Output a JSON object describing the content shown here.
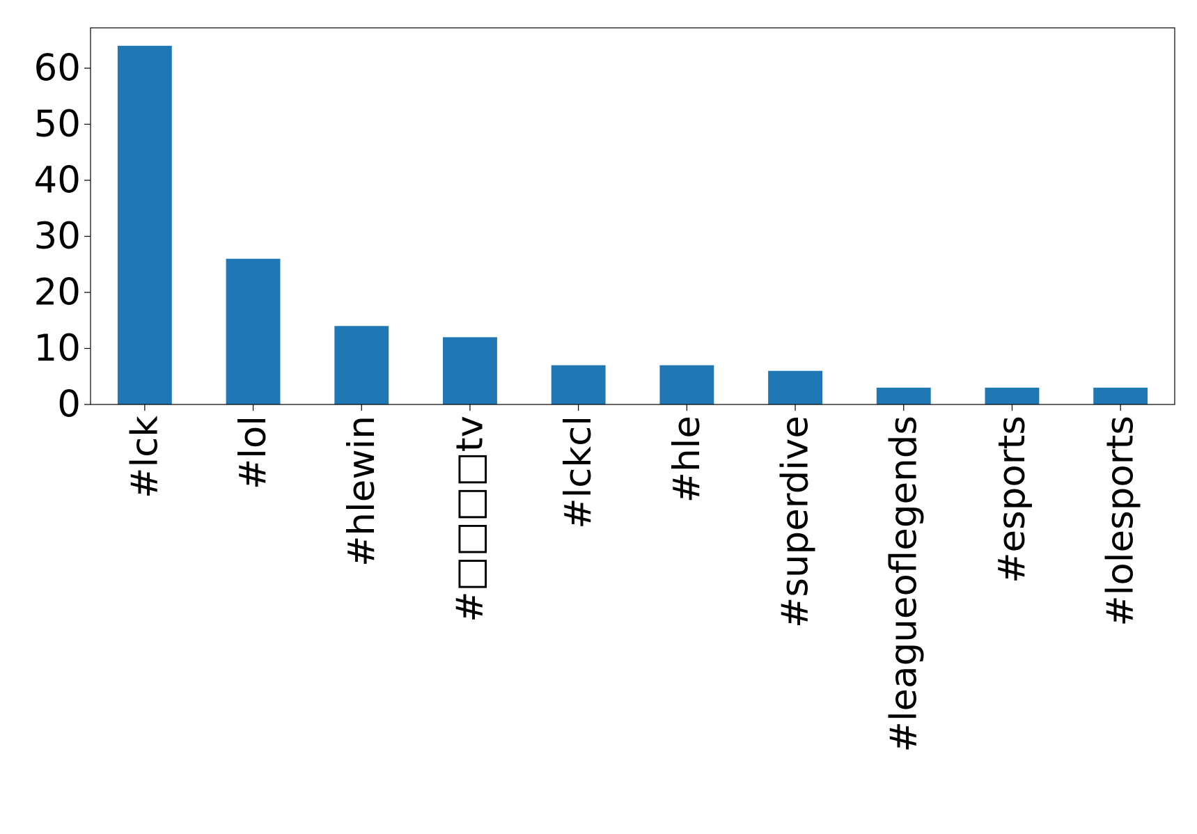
{
  "chart_data": {
    "type": "bar",
    "categories": [
      "#lck",
      "#lol",
      "#hlewin",
      "#□□□□tv",
      "#lckcl",
      "#hle",
      "#superdive",
      "#leagueoflegends",
      "#esports",
      "#lolesports"
    ],
    "values": [
      64,
      26,
      14,
      12,
      7,
      7,
      6,
      3,
      3,
      3
    ],
    "color": "#1f77b4",
    "ylim": [
      0,
      67.2
    ],
    "yticks": [
      0,
      10,
      20,
      30,
      40,
      50,
      60
    ],
    "grid": false
  }
}
